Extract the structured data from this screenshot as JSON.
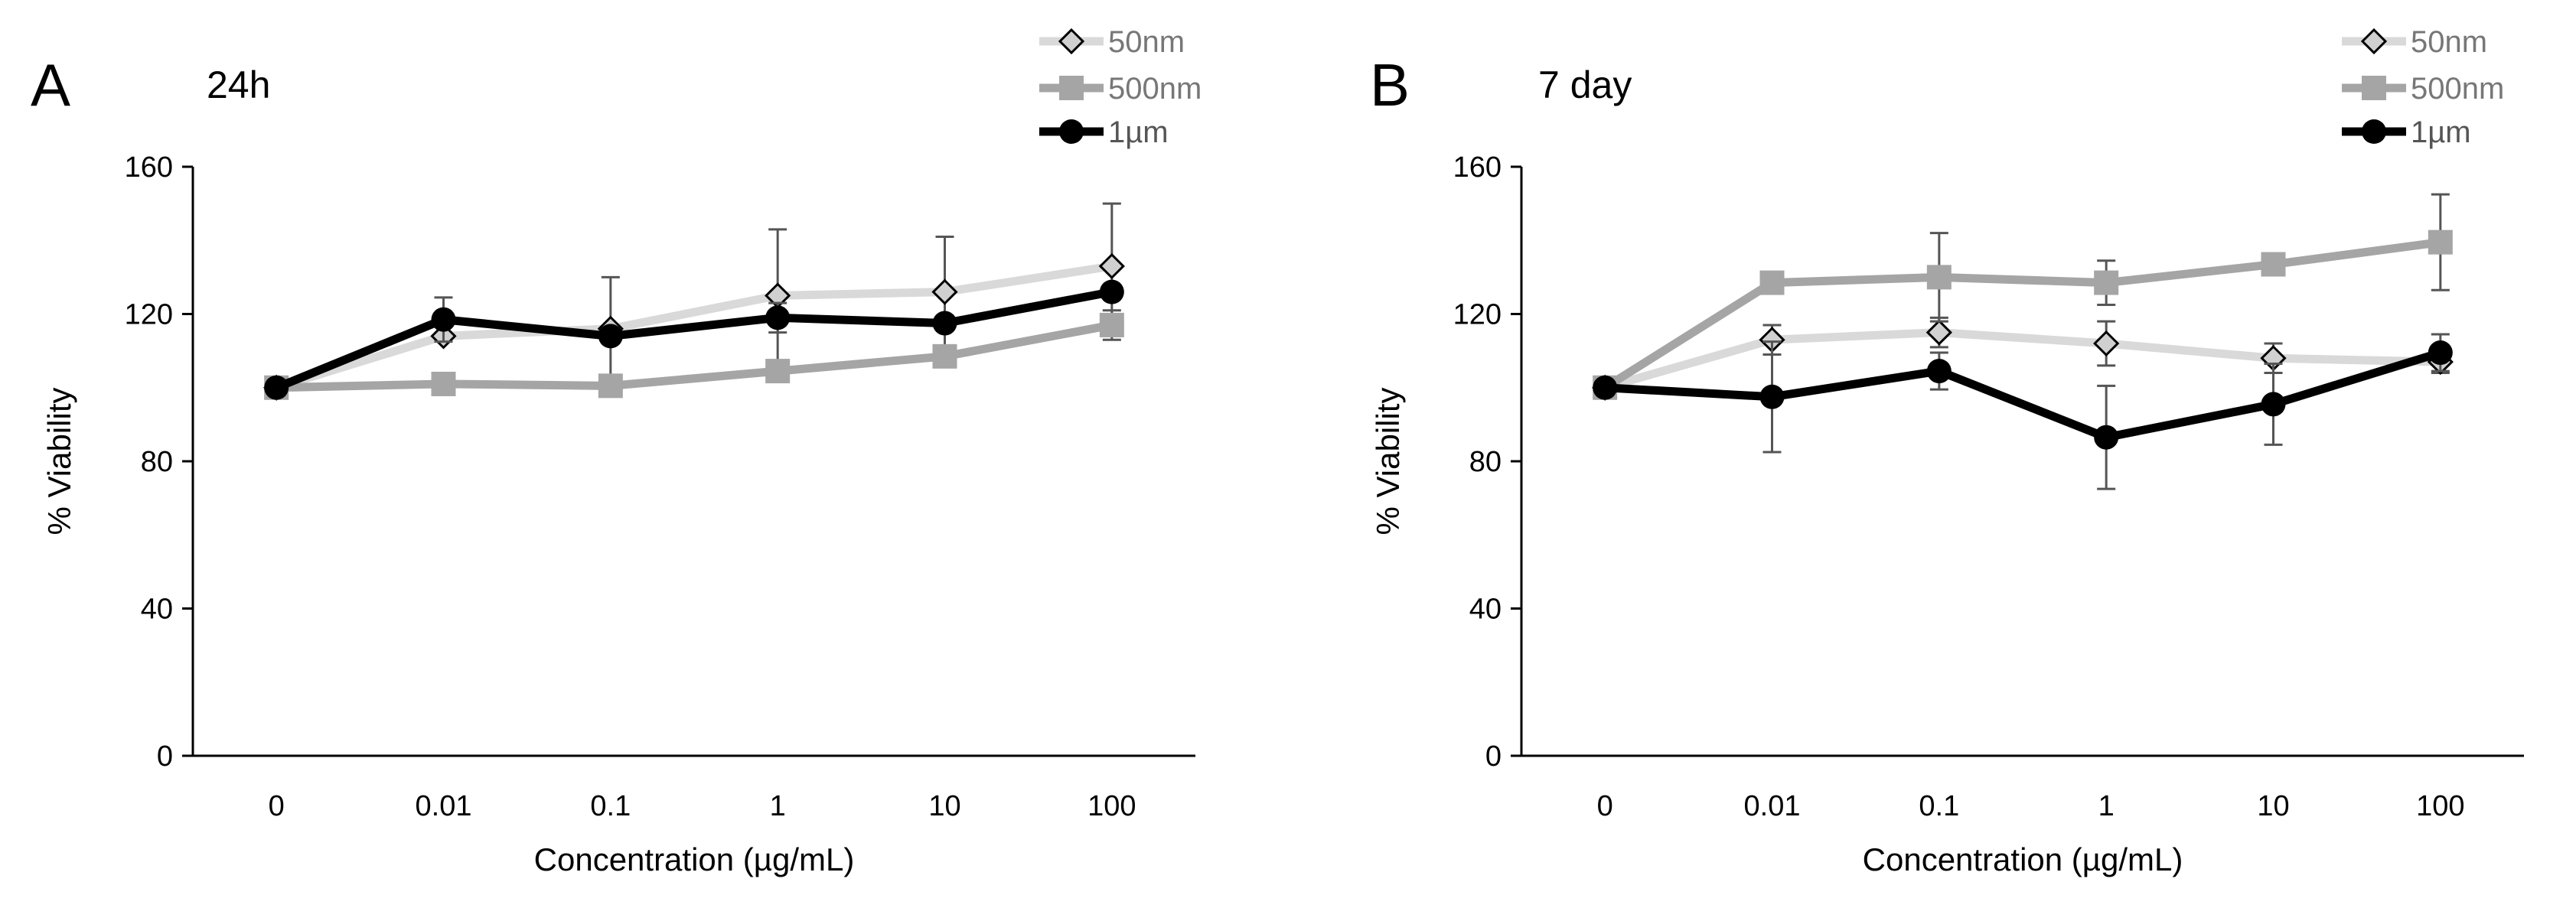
{
  "chart_data": [
    {
      "type": "line",
      "panel_label": "A",
      "title": "24h",
      "xlabel": "Concentration (µg/mL)",
      "ylabel": "% Viability",
      "categories": [
        "0",
        "0.01",
        "0.1",
        "1",
        "10",
        "100"
      ],
      "ylim": [
        0,
        160
      ],
      "yticks": [
        0,
        40,
        80,
        120,
        160
      ],
      "legend_position": "top-right",
      "series": [
        {
          "name": "50nm",
          "color": "#d9d9d9",
          "marker": "diamond",
          "values": [
            100,
            114,
            116,
            125,
            126,
            133
          ],
          "errors": [
            0,
            0,
            14,
            18,
            15,
            17
          ]
        },
        {
          "name": "500nm",
          "color": "#a5a5a5",
          "marker": "square",
          "values": [
            100,
            101,
            100.5,
            104.5,
            108.5,
            117
          ],
          "errors": [
            0,
            0,
            0,
            0,
            0,
            4
          ]
        },
        {
          "name": "1µm",
          "color": "#000000",
          "marker": "circle",
          "values": [
            100,
            118.5,
            114,
            119,
            117.5,
            126
          ],
          "errors": [
            0,
            6,
            0,
            4,
            0,
            0
          ]
        }
      ]
    },
    {
      "type": "line",
      "panel_label": "B",
      "title": "7 day",
      "xlabel": "Concentration (µg/mL)",
      "ylabel": "% Viability",
      "categories": [
        "0",
        "0.01",
        "0.1",
        "1",
        "10",
        "100"
      ],
      "ylim": [
        0,
        160
      ],
      "yticks": [
        0,
        40,
        80,
        120,
        160
      ],
      "legend_position": "top-right",
      "series": [
        {
          "name": "50nm",
          "color": "#d9d9d9",
          "marker": "diamond",
          "values": [
            100,
            113,
            115,
            112,
            108,
            107
          ],
          "errors": [
            0,
            4,
            4,
            6,
            4,
            3
          ]
        },
        {
          "name": "500nm",
          "color": "#a5a5a5",
          "marker": "square",
          "values": [
            100,
            128.5,
            130,
            128.5,
            133.5,
            139.5
          ],
          "errors": [
            0,
            0,
            12,
            6,
            0,
            13
          ]
        },
        {
          "name": "1µm",
          "color": "#000000",
          "marker": "circle",
          "values": [
            100,
            97.5,
            104.5,
            86.5,
            95.5,
            109.5
          ],
          "errors": [
            0,
            15,
            5,
            14,
            11,
            5
          ]
        }
      ]
    }
  ]
}
